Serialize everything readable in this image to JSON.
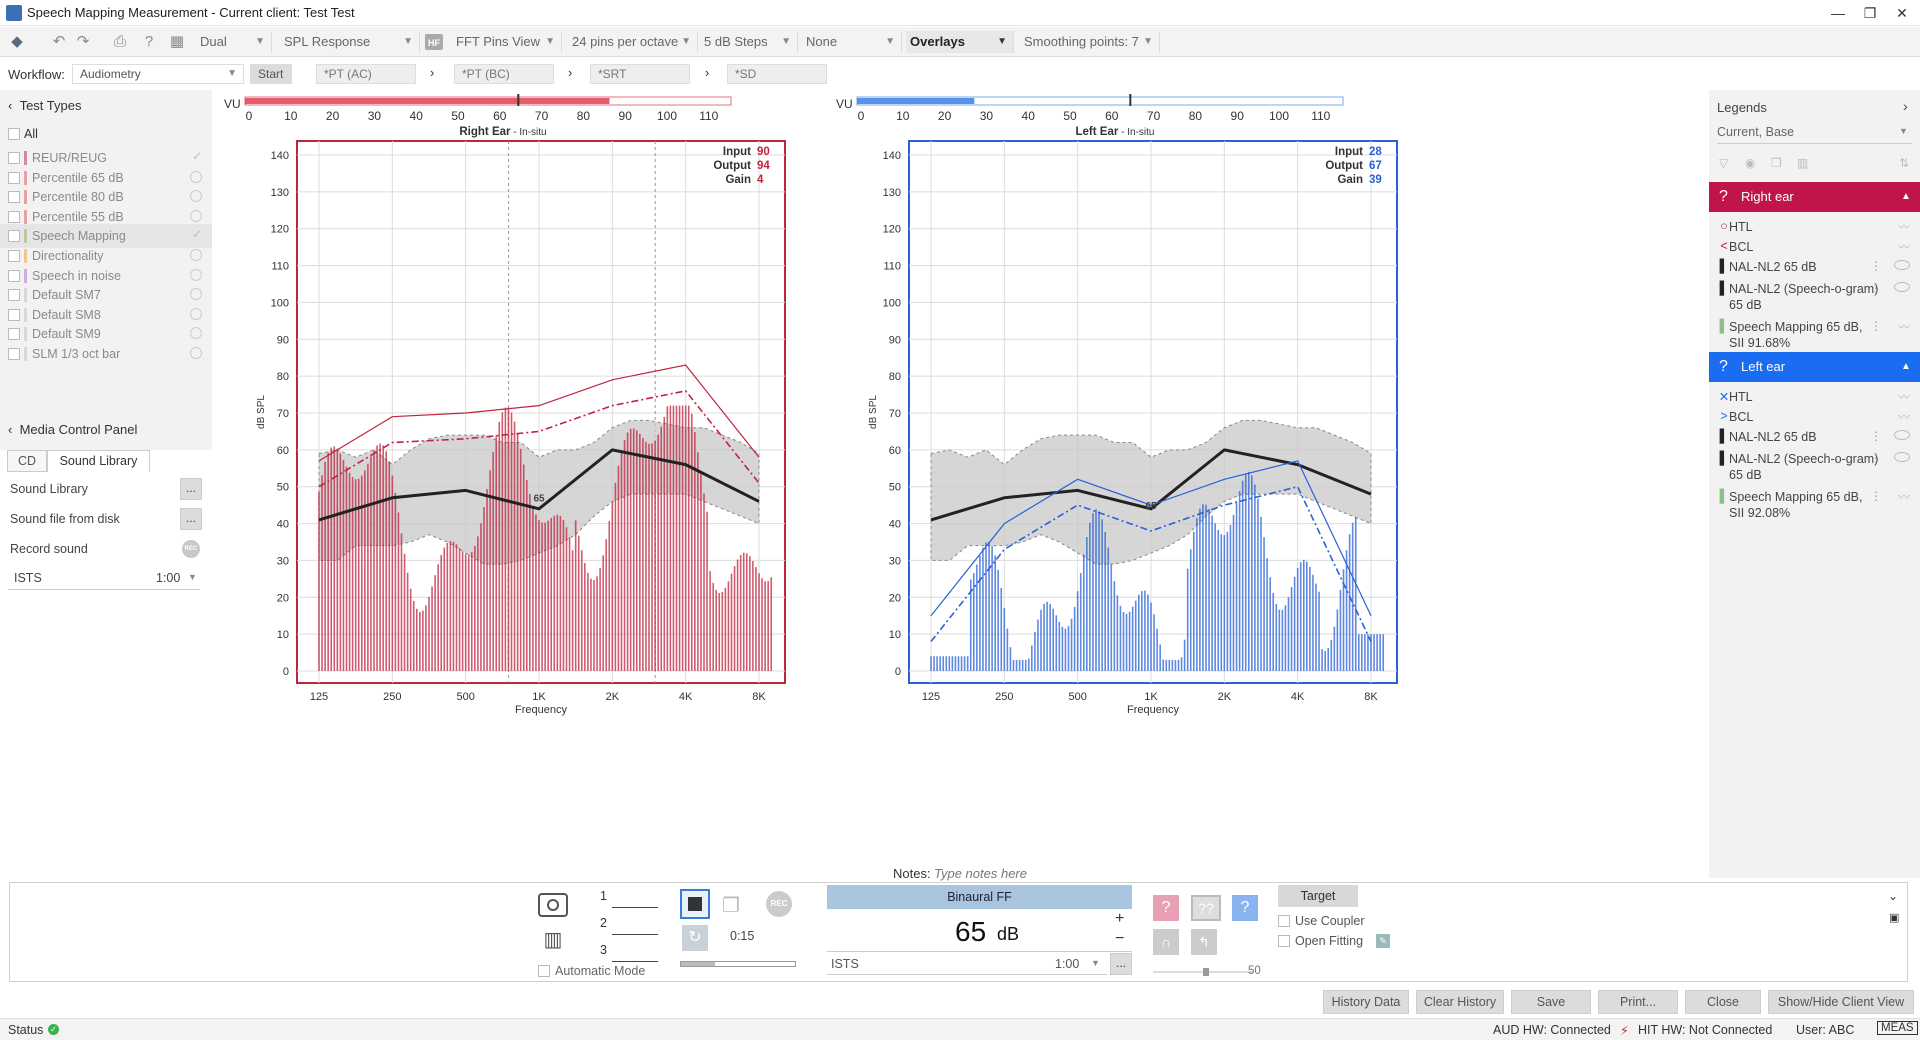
{
  "window": {
    "title": "Speech Mapping Measurement - Current client: Test Test",
    "minimize": "—",
    "restore": "❐",
    "close": "✕"
  },
  "toolbar": {
    "mode": "Dual",
    "view": "SPL Response",
    "fft": "FFT Pins View",
    "pins": "24 pins per octave",
    "steps": "5 dB Steps",
    "none": "None",
    "overlays": "Overlays",
    "smoothing": "Smoothing points: 7",
    "hf_badge": "HF"
  },
  "workflow": {
    "label": "Workflow:",
    "value": "Audiometry",
    "start": "Start",
    "steps": [
      "*PT (AC)",
      "*PT (BC)",
      "*SRT",
      "*SD"
    ]
  },
  "test_types": {
    "header": "Test Types",
    "all": "All",
    "items": [
      {
        "label": "REUR/REUG",
        "color": "#d08aa0",
        "state": "check"
      },
      {
        "label": "Percentile 65 dB",
        "color": "#e8a0a0",
        "state": "circle"
      },
      {
        "label": "Percentile 80 dB",
        "color": "#e8a0a0",
        "state": "circle"
      },
      {
        "label": "Percentile 55 dB",
        "color": "#e8a0a0",
        "state": "circle"
      },
      {
        "label": "Speech Mapping",
        "color": "#b9c9a0",
        "state": "check"
      },
      {
        "label": "Directionality",
        "color": "#f0c890",
        "state": "circle"
      },
      {
        "label": "Speech in noise",
        "color": "#d0b0e0",
        "state": "circle"
      },
      {
        "label": "Default SM7",
        "color": "#d8d8d8",
        "state": "circle"
      },
      {
        "label": "Default SM8",
        "color": "#d8d8d8",
        "state": "circle"
      },
      {
        "label": "Default SM9",
        "color": "#d8d8d8",
        "state": "circle"
      },
      {
        "label": "SLM 1/3 oct bar",
        "color": "#d8d8d8",
        "state": "circle"
      }
    ]
  },
  "media_panel": {
    "header": "Media Control Panel",
    "tabs": [
      "CD",
      "Sound Library"
    ],
    "rows": {
      "library": "Sound Library",
      "disk": "Sound file from disk",
      "record": "Record sound",
      "btn": "...",
      "rec": "REC"
    },
    "signal": "ISTS",
    "duration": "1:00"
  },
  "charts": {
    "vu_label": "VU",
    "y_axis_label": "dB SPL",
    "x_axis_label": "Frequency",
    "vu_ticks": [
      "0",
      "10",
      "20",
      "30",
      "40",
      "50",
      "60",
      "70",
      "80",
      "90",
      "100",
      "110"
    ],
    "y_ticks": [
      "140",
      "130",
      "120",
      "110",
      "100",
      "90",
      "80",
      "70",
      "60",
      "50",
      "40",
      "30",
      "20",
      "10",
      "0"
    ],
    "x_ticks": [
      "125",
      "250",
      "500",
      "1K",
      "2K",
      "4K",
      "8K"
    ],
    "marker": "65",
    "right": {
      "title": "Right Ear",
      "subtitle": " - In-situ",
      "color": "#c0253f",
      "vu_level": 87,
      "input_label": "Input",
      "input": "90",
      "output_label": "Output",
      "output": "94",
      "gain_label": "Gain",
      "gain": "4"
    },
    "left": {
      "title": "Left Ear",
      "subtitle": " - In-situ",
      "color": "#2a62d6",
      "vu_level": 28,
      "input_label": "Input",
      "input": "28",
      "output_label": "Output",
      "output": "67",
      "gain_label": "Gain",
      "gain": "39"
    }
  },
  "chart_data": [
    {
      "type": "line",
      "title": "Right Ear - In-situ",
      "xlabel": "Frequency",
      "ylabel": "dB SPL",
      "ylim": [
        0,
        140
      ],
      "x": [
        "125",
        "250",
        "500",
        "1K",
        "2K",
        "4K",
        "8K"
      ],
      "series": [
        {
          "name": "NAL-NL2 65 dB",
          "values": [
            41,
            47,
            49,
            44,
            60,
            56,
            46
          ]
        },
        {
          "name": "Speech Mapping 65 dB",
          "values": [
            50,
            62,
            63,
            65,
            72,
            76,
            51
          ]
        }
      ]
    },
    {
      "type": "line",
      "title": "Left Ear - In-situ",
      "xlabel": "Frequency",
      "ylabel": "dB SPL",
      "ylim": [
        0,
        140
      ],
      "x": [
        "125",
        "250",
        "500",
        "1K",
        "2K",
        "4K",
        "8K"
      ],
      "series": [
        {
          "name": "NAL-NL2 65 dB",
          "values": [
            41,
            47,
            49,
            44,
            60,
            56,
            48
          ]
        },
        {
          "name": "Speech Mapping 65 dB",
          "values": [
            8,
            33,
            45,
            38,
            45,
            50,
            8
          ]
        }
      ]
    }
  ],
  "legends": {
    "header": "Legends",
    "subheader": "Current, Base",
    "right_ear": {
      "title": "Right ear",
      "items": [
        "HTL",
        "BCL",
        "NAL-NL2 65 dB",
        "NAL-NL2 (Speech-o-gram) 65 dB",
        "Speech Mapping 65 dB, SII 91.68%"
      ]
    },
    "left_ear": {
      "title": "Left ear",
      "items": [
        "HTL",
        "BCL",
        "NAL-NL2 65 dB",
        "NAL-NL2 (Speech-o-gram) 65 dB",
        "Speech Mapping 65 dB, SII 92.08%"
      ]
    },
    "colors": {
      "right": "#c0154a",
      "left": "#1a6cf0"
    }
  },
  "notes": {
    "label": "Notes:",
    "placeholder": "Type notes here"
  },
  "bottom": {
    "slots": [
      "1",
      "2",
      "3"
    ],
    "auto_mode": "Automatic Mode",
    "time": "0:15",
    "rec": "REC",
    "mode_label": "Binaural FF",
    "level_value": "65",
    "level_unit": "dB",
    "plus": "+",
    "minus": "−",
    "signal": "ISTS",
    "duration": "1:00",
    "dots": "...",
    "volume": "50",
    "target": "Target",
    "use_coupler": "Use Coupler",
    "open_fitting": "Open Fitting"
  },
  "actions": {
    "history": "History Data",
    "clear": "Clear History",
    "save": "Save",
    "print": "Print...",
    "close": "Close",
    "client_view": "Show/Hide Client View"
  },
  "status": {
    "label": "Status",
    "aud": "AUD HW:  Connected",
    "hit": "HIT HW:  Not Connected",
    "user": "User: ABC",
    "meas": "MEAS"
  }
}
